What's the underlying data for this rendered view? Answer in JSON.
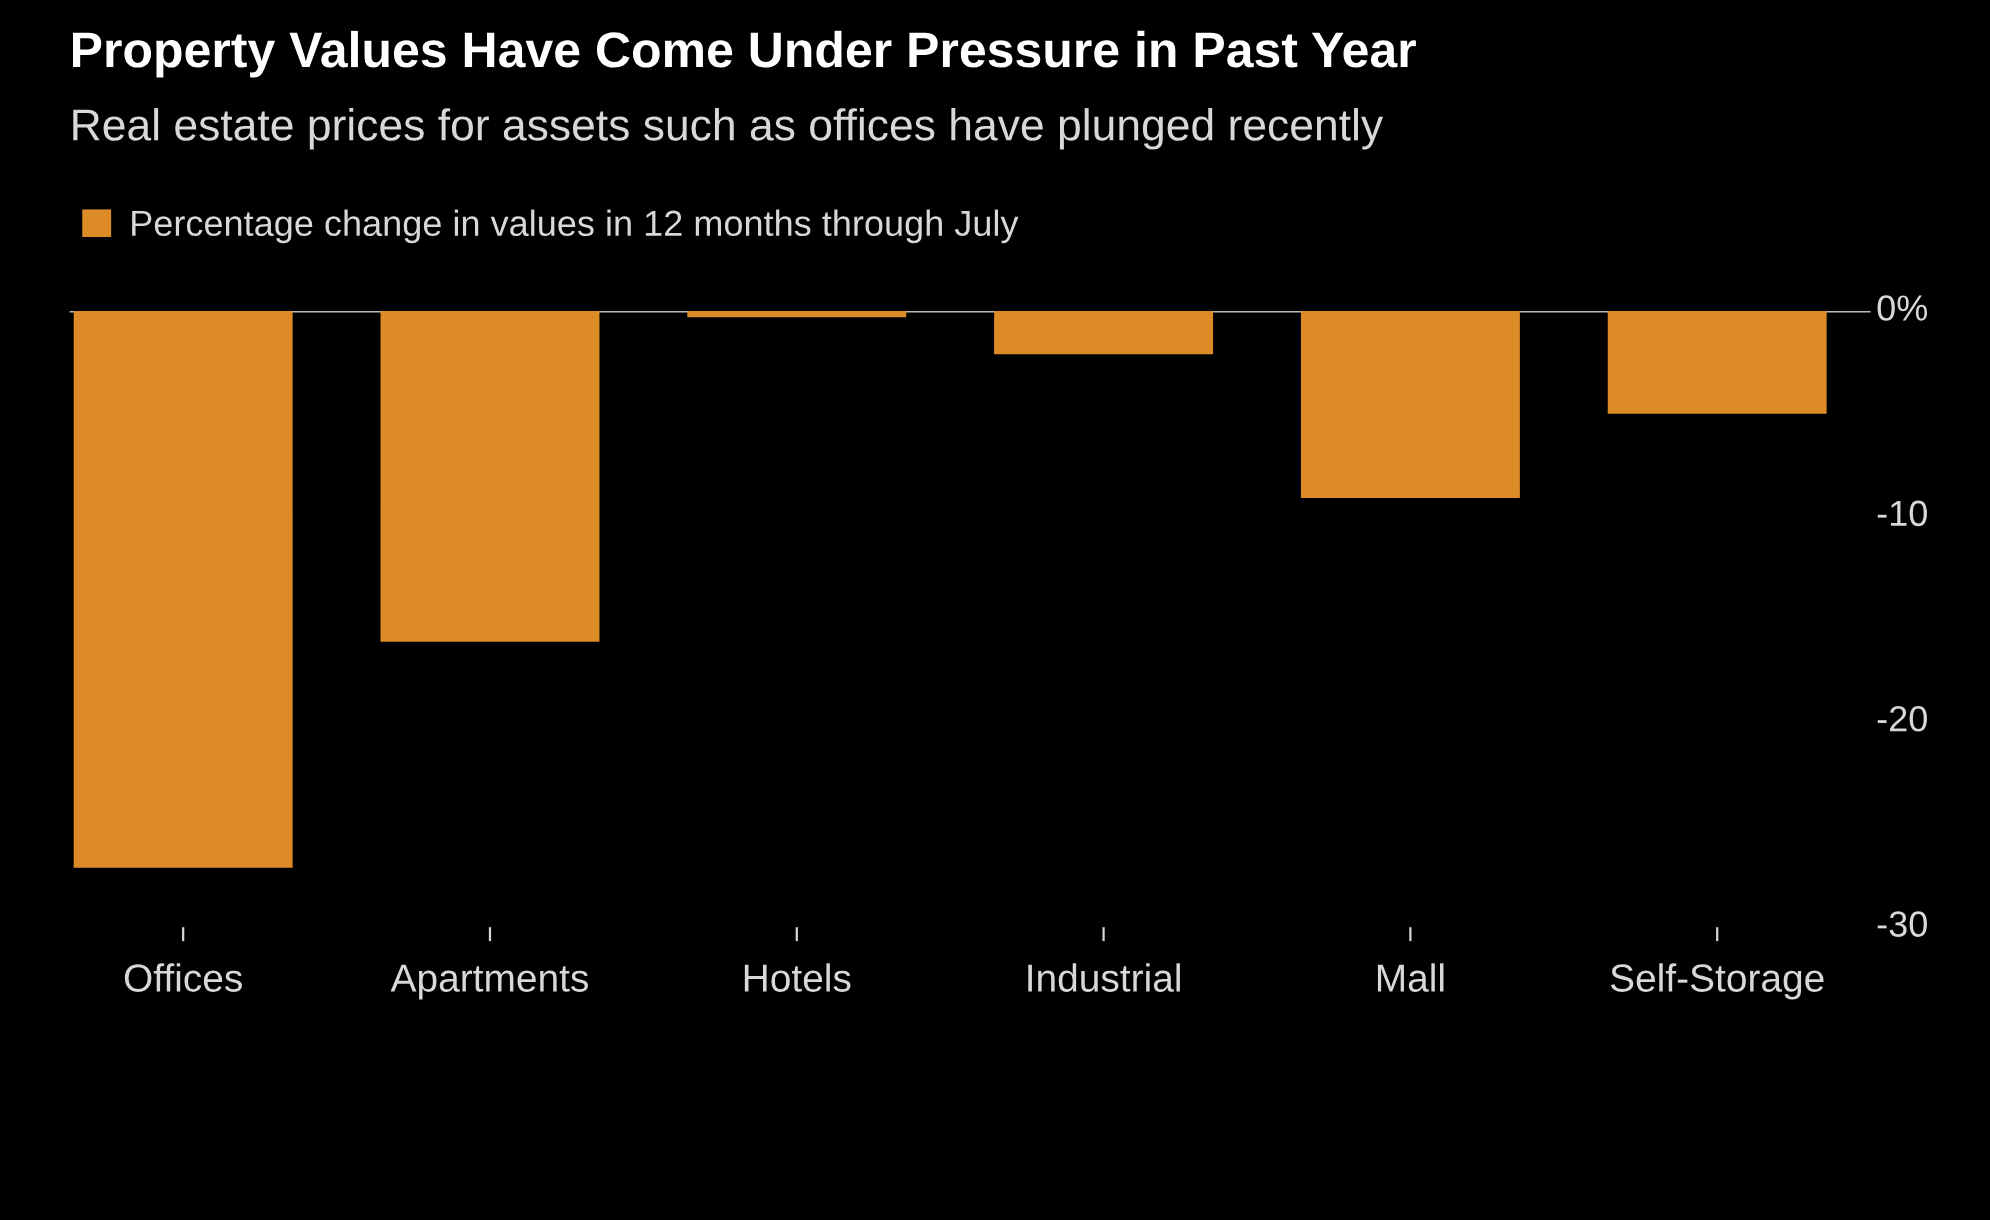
{
  "chart_data": {
    "type": "bar",
    "title": "Property Values Have Come Under Pressure in Past Year",
    "subtitle": "Real estate prices for assets such as offices have plunged recently",
    "categories": [
      "Offices",
      "Apartments",
      "Hotels",
      "Industrial",
      "Mall",
      "Self-Storage"
    ],
    "series": [
      {
        "name": "Percentage change in values in 12 months through July",
        "color": "#dd8b26",
        "values": [
          -27,
          -16,
          -0.2,
          -2,
          -9,
          -4.9
        ]
      }
    ],
    "ylim": [
      -30,
      0
    ],
    "ref_lines": [
      {
        "axis": "y",
        "value": 0,
        "color": "#bbbbbb"
      }
    ],
    "yticks": [
      {
        "value": 0,
        "label": "0%"
      },
      -10,
      -20,
      -30
    ],
    "grid": false,
    "legend": "top left"
  }
}
